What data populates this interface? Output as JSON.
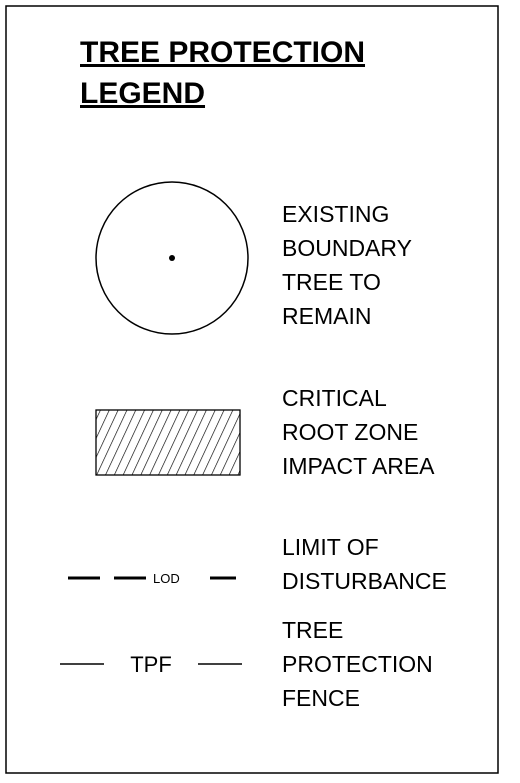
{
  "title": [
    "TREE PROTECTION",
    "LEGEND"
  ],
  "items": [
    {
      "symbol": "circle",
      "label": [
        "EXISTING",
        "BOUNDARY",
        "TREE TO",
        "REMAIN"
      ]
    },
    {
      "symbol": "hatch",
      "label": [
        "CRITICAL",
        "ROOT ZONE",
        "IMPACT AREA"
      ]
    },
    {
      "symbol": "dashed-line",
      "symbol_text": "LOD",
      "label": [
        "LIMIT OF",
        "DISTURBANCE"
      ]
    },
    {
      "symbol": "line",
      "symbol_text": "TPF",
      "label": [
        "TREE",
        "PROTECTION",
        "FENCE"
      ]
    }
  ]
}
